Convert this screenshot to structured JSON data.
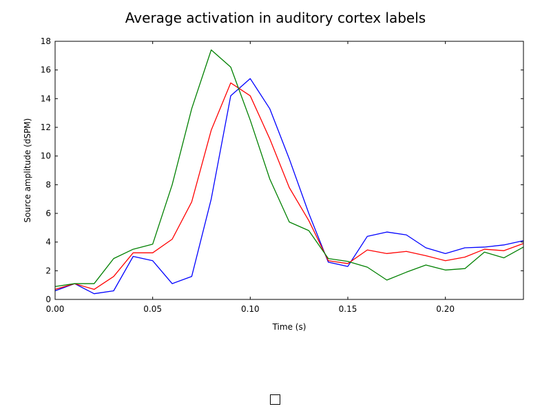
{
  "chart_data": {
    "type": "line",
    "title": "Average activation in auditory cortex labels",
    "xlabel": "Time (s)",
    "ylabel": "Source amplitude (dSPM)",
    "xlim": [
      0.0,
      0.24
    ],
    "ylim": [
      0,
      18
    ],
    "x_ticks": [
      "0.00",
      "0.05",
      "0.10",
      "0.15",
      "0.20"
    ],
    "y_ticks": [
      "0",
      "2",
      "4",
      "6",
      "8",
      "10",
      "12",
      "14",
      "16",
      "18"
    ],
    "grid": false,
    "x": [
      0.0,
      0.01,
      0.02,
      0.03,
      0.04,
      0.05,
      0.06,
      0.07,
      0.08,
      0.09,
      0.1,
      0.11,
      0.12,
      0.13,
      0.14,
      0.15,
      0.16,
      0.17,
      0.18,
      0.19,
      0.2,
      0.21,
      0.22,
      0.23,
      0.24
    ],
    "series": [
      {
        "color": "#0000ff",
        "values": [
          0.6,
          1.1,
          0.4,
          0.6,
          3.0,
          2.7,
          1.1,
          1.6,
          7.0,
          14.2,
          15.4,
          13.3,
          9.8,
          6.0,
          2.6,
          2.3,
          4.4,
          4.7,
          4.5,
          3.6,
          3.2,
          3.6,
          3.65,
          3.8,
          4.1
        ]
      },
      {
        "color": "#ff0000",
        "values": [
          0.7,
          1.1,
          0.7,
          1.6,
          3.25,
          3.25,
          4.2,
          6.8,
          11.8,
          15.1,
          14.2,
          11.2,
          7.8,
          5.5,
          2.7,
          2.5,
          3.45,
          3.2,
          3.35,
          3.05,
          2.7,
          2.95,
          3.5,
          3.4,
          3.9
        ]
      },
      {
        "color": "#008000",
        "values": [
          0.9,
          1.1,
          1.1,
          2.85,
          3.5,
          3.85,
          8.0,
          13.3,
          17.4,
          16.2,
          12.5,
          8.4,
          5.4,
          4.8,
          2.85,
          2.65,
          2.25,
          1.35,
          1.9,
          2.4,
          2.05,
          2.15,
          3.3,
          2.9,
          3.65
        ]
      }
    ]
  }
}
